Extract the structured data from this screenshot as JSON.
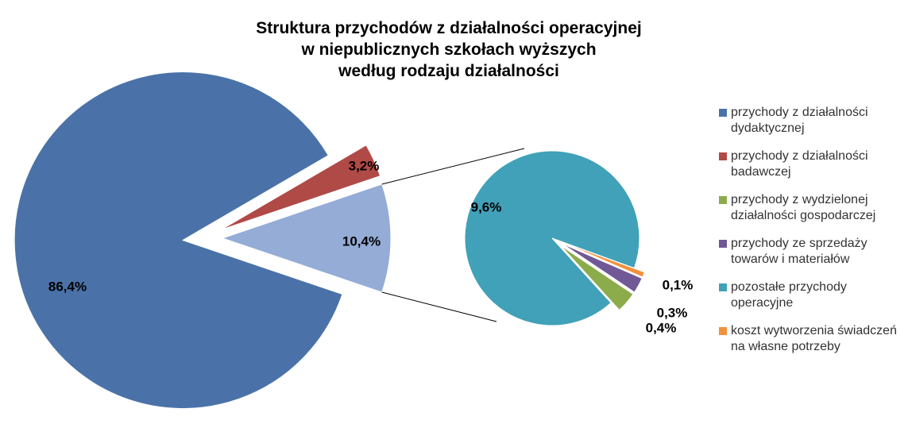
{
  "chart_data": {
    "type": "pie-of-pie",
    "title": [
      "Struktura przychodów z działalności operacyjnej",
      "w niepublicznych szkołach wyższych",
      "według rodzaju działalności"
    ],
    "categories": [
      "przychody z działalności dydaktycznej",
      "przychody z działalności badawczej",
      "przychody z wydzielonej działalności gospodarczej",
      "przychody ze sprzedaży towarów i materiałów",
      "pozostałe przychody operacyjne",
      "koszt wytworzenia świadczeń na własne potrzeby"
    ],
    "colors": [
      "#4a72a8",
      "#b04a47",
      "#8cac4c",
      "#715896",
      "#41a1b8",
      "#f3913c"
    ],
    "values": [
      86.4,
      3.2,
      0.4,
      0.3,
      9.6,
      0.1
    ],
    "value_labels": [
      "86,4%",
      "3,2%",
      "0,4%",
      "0,3%",
      "9,6%",
      "0,1%"
    ],
    "secondary_categories": [
      2,
      3,
      4,
      5
    ],
    "other": {
      "value": 10.4,
      "value_label": "10,4%",
      "color": "#94acd6"
    },
    "legend": "right"
  }
}
